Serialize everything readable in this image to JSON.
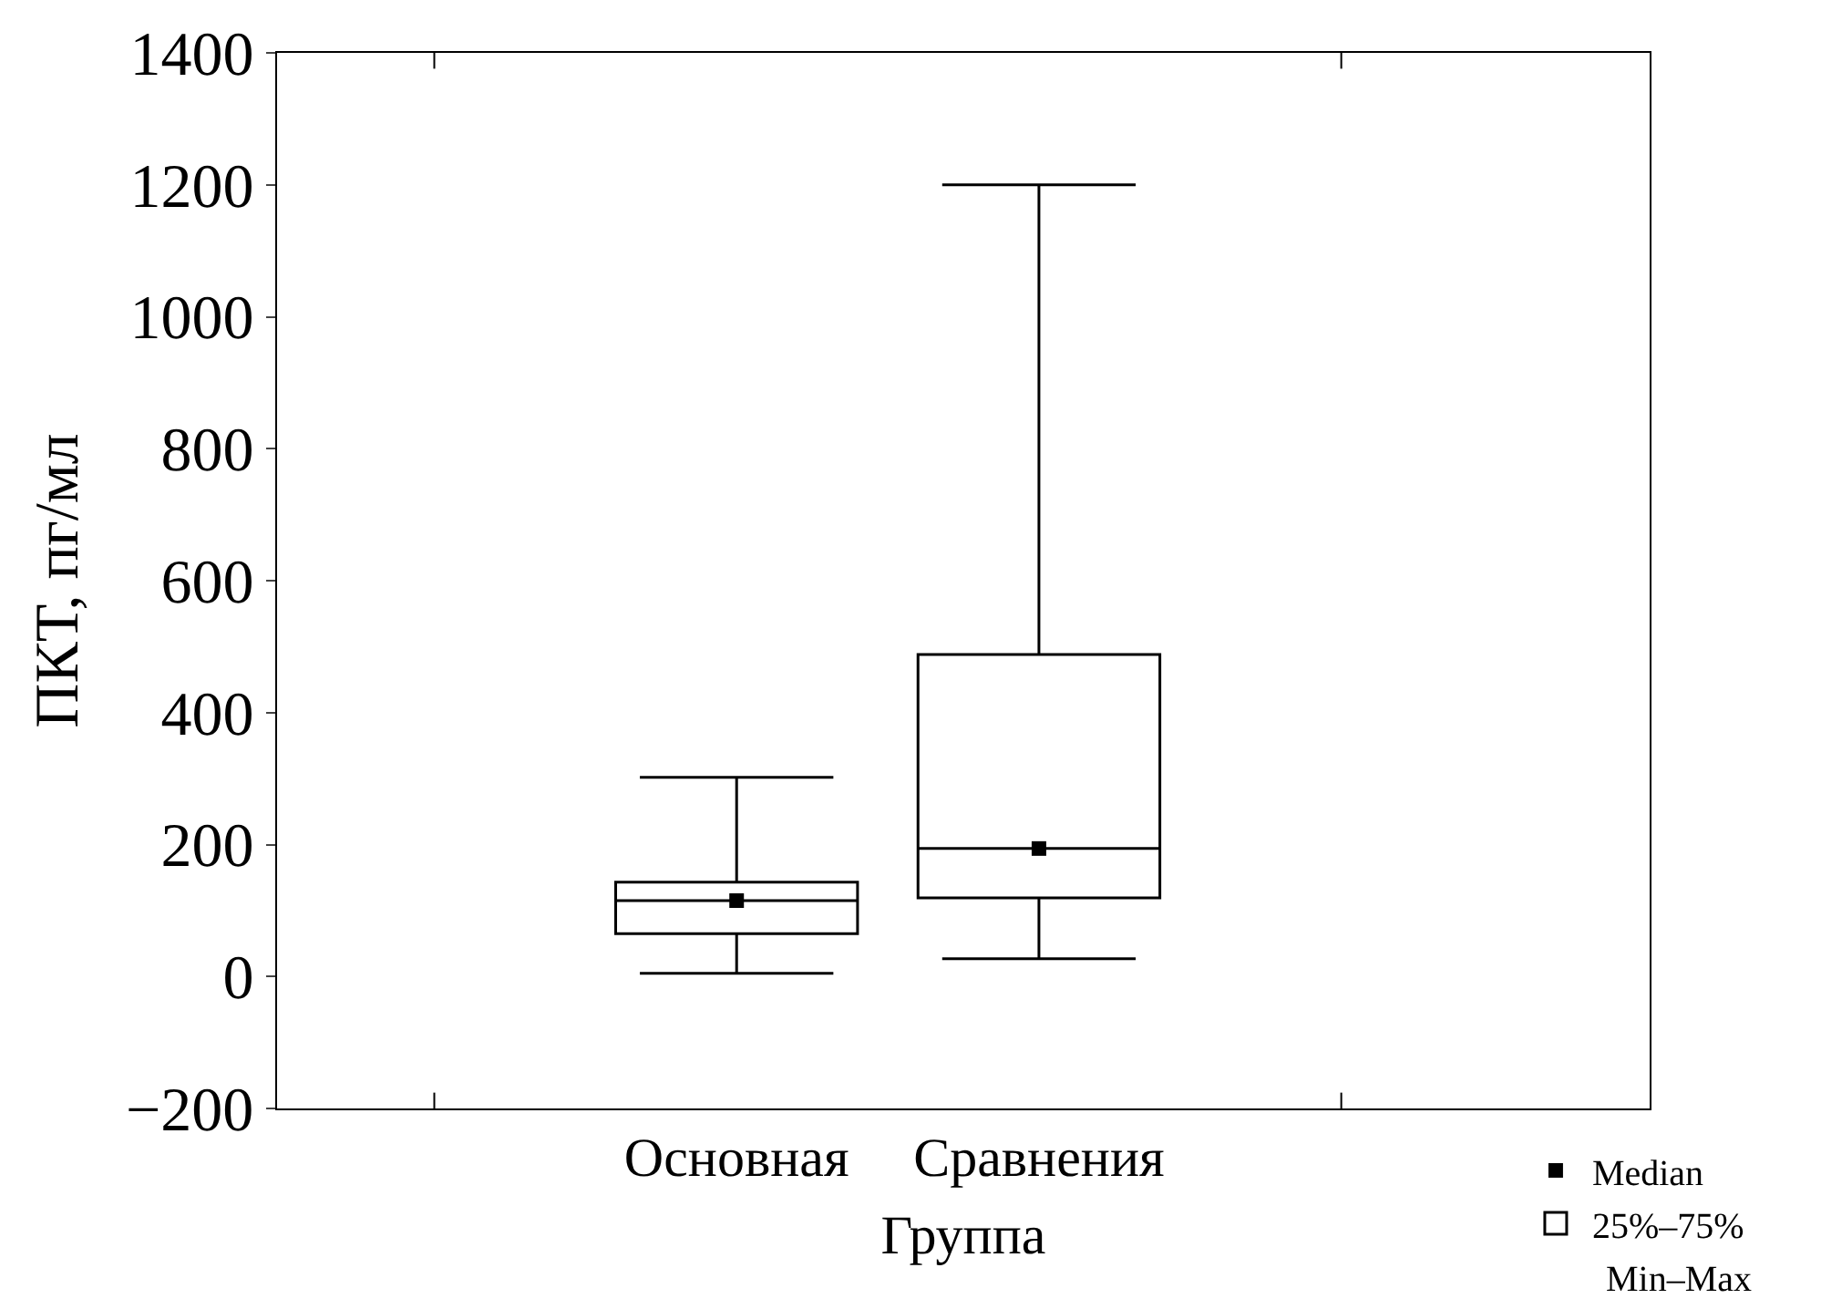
{
  "chart_data": {
    "type": "box",
    "xlabel": "Группа",
    "ylabel": "ПКТ, пг/мл",
    "categories": [
      "Основная",
      "Сравнения"
    ],
    "series": [
      {
        "name": "25%–75%",
        "color": "#000000",
        "boxes": [
          {
            "low": 5,
            "q1": 65,
            "median": 115,
            "q3": 143,
            "high": 302
          },
          {
            "low": 27,
            "q1": 119,
            "median": 194,
            "q3": 488,
            "high": 1200
          }
        ]
      },
      {
        "type": "scatter",
        "name": "Median",
        "color": "#000000",
        "x": [
          "Основная",
          "Сравнения"
        ],
        "values": [
          115,
          194
        ],
        "marker": "square"
      }
    ],
    "ylim": [
      -200,
      1400
    ],
    "yticks": [
      {
        "value": -200,
        "label": "−200"
      },
      0,
      200,
      400,
      600,
      800,
      1000,
      1200,
      1400
    ],
    "annotations": [
      "Min–Max"
    ],
    "legend": "bottom right"
  }
}
